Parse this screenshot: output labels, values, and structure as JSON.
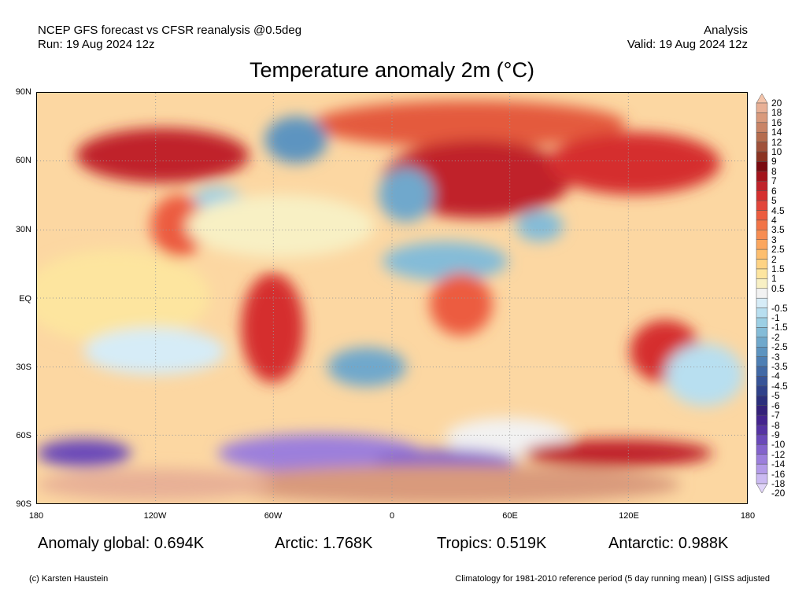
{
  "header": {
    "left_line1": "NCEP GFS forecast vs CFSR reanalysis @0.5deg",
    "left_line2": "Run: 19 Aug 2024 12z",
    "right_line1": "Analysis",
    "right_line2": "Valid: 19 Aug 2024 12z"
  },
  "title": "Temperature anomaly 2m (°C)",
  "lat_labels": [
    "90N",
    "60N",
    "30N",
    "EQ",
    "30S",
    "60S",
    "90S"
  ],
  "lon_labels": [
    "180",
    "120W",
    "60W",
    "0",
    "60E",
    "120E",
    "180"
  ],
  "stats": {
    "global": "Anomaly global: 0.694K",
    "arctic": "Arctic: 1.768K",
    "tropics": "Tropics: 0.519K",
    "antarctic": "Antarctic: 0.988K"
  },
  "footer": {
    "credit": "(c) Karsten Haustein",
    "note": "Climatology for 1981-2010 reference period (5 day running mean) | GISS adjusted"
  },
  "colorbar": {
    "labels": [
      "20",
      "18",
      "16",
      "14",
      "12",
      "10",
      "9",
      "8",
      "7",
      "6",
      "5",
      "4.5",
      "4",
      "3.5",
      "3",
      "2.5",
      "2",
      "1.5",
      "1",
      "0.5",
      "-0.5",
      "-1",
      "-1.5",
      "-2",
      "-2.5",
      "-3",
      "-3.5",
      "-4",
      "-4.5",
      "-5",
      "-6",
      "-7",
      "-8",
      "-9",
      "-10",
      "-12",
      "-14",
      "-16",
      "-18",
      "-20"
    ],
    "colors": [
      "#f4c4aa",
      "#e8b096",
      "#d99a7c",
      "#c98466",
      "#b56c4e",
      "#a0513a",
      "#8b3322",
      "#7a0a10",
      "#a3141c",
      "#c0222a",
      "#d52f2f",
      "#e2453a",
      "#ec5c3f",
      "#f27447",
      "#f78d52",
      "#fba65e",
      "#fdbe6e",
      "#fed384",
      "#fde59f",
      "#f8f0c4",
      "#f2f2f2",
      "#d6ecf7",
      "#b8dff0",
      "#9ccfe4",
      "#84bcd8",
      "#6fa8cc",
      "#5d94c0",
      "#4e7fb4",
      "#4169a6",
      "#375498",
      "#2f418a",
      "#2b2f7c",
      "#34217a",
      "#44248f",
      "#5533a3",
      "#6a49b9",
      "#8363cc",
      "#9c7fdc",
      "#b39be8",
      "#cbbaf2",
      "#e0d4f8"
    ]
  }
}
